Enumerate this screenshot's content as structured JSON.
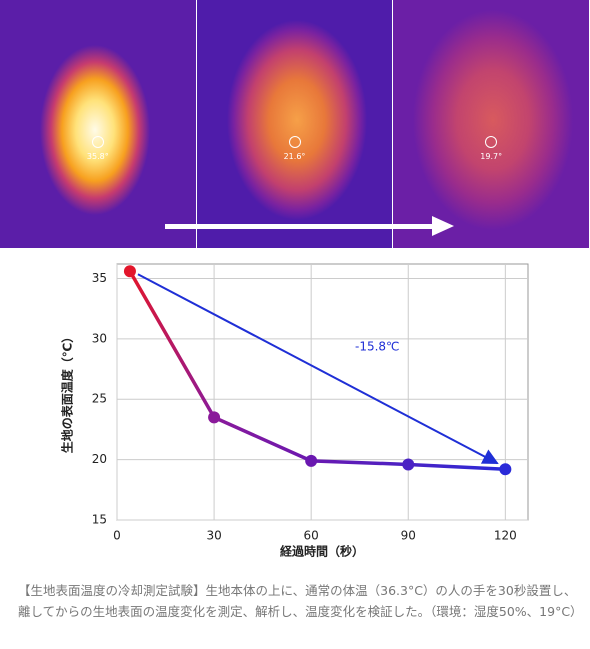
{
  "thermal_labels": [
    "35.8°",
    "21.6°",
    "19.7°"
  ],
  "caption": "【生地表面温度の冷却測定試験】生地本体の上に、通常の体温（36.3°C）の人の手を30秒設置し、離してからの生地表面の温度変化を測定、解析し、温度変化を検証した。（環境：湿度50%、19°C）",
  "chart_data": {
    "type": "line",
    "x_label": "経過時間（秒）",
    "y_label": "生地の表面温度（℃）",
    "annotation": "-15.8℃",
    "series": [
      {
        "x": [
          4,
          30,
          60,
          90,
          120
        ],
        "values": [
          35.6,
          23.5,
          19.9,
          19.6,
          19.2
        ],
        "colors": [
          "#e3162b",
          "#8a1a9a",
          "#6a18b0",
          "#4a22c4",
          "#2a2ad8"
        ]
      }
    ],
    "arrow_color": "#1f2fd6",
    "xlim": [
      0,
      127
    ],
    "xticks": [
      0,
      30,
      60,
      90,
      120
    ],
    "ylim": [
      15,
      36.2
    ],
    "yticks": [
      15,
      20,
      25,
      30,
      35
    ],
    "grid": true
  }
}
